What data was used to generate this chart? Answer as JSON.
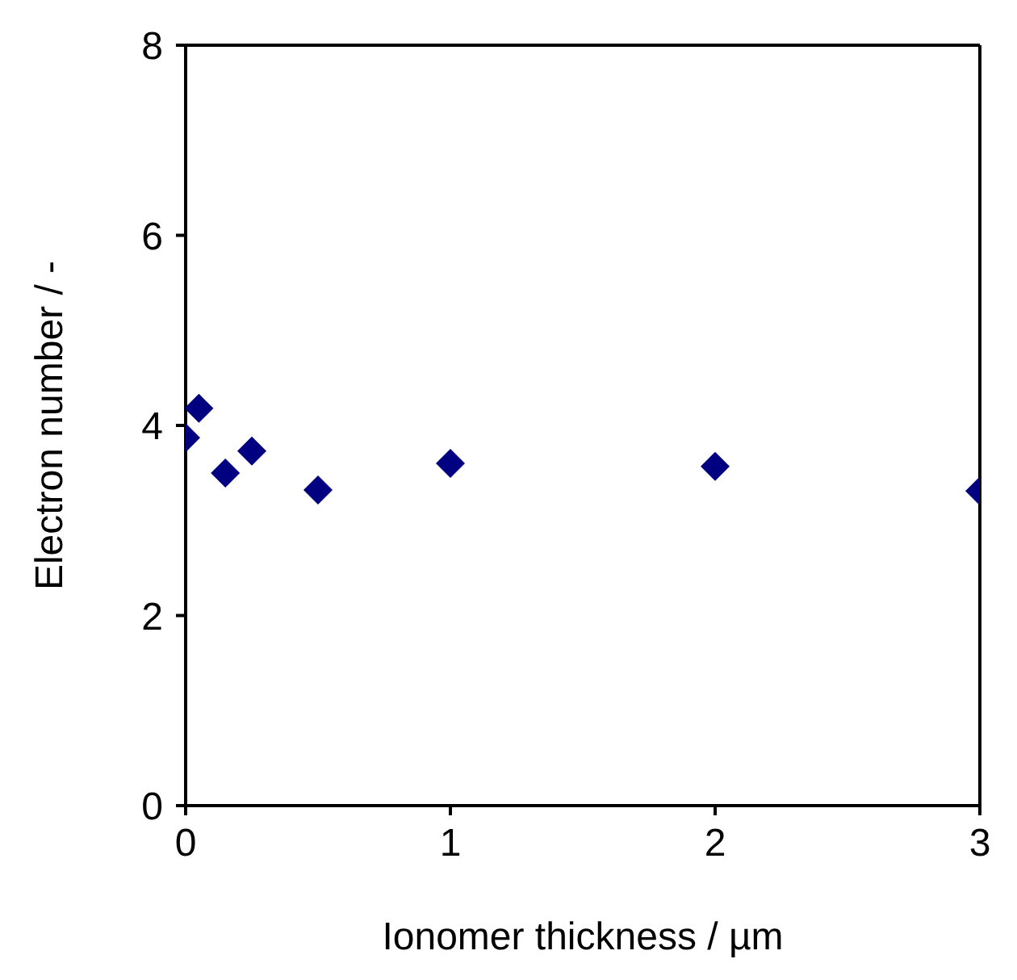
{
  "chart_data": {
    "type": "scatter",
    "xlabel": "Ionomer thickness / µm",
    "ylabel": "Electron number / -",
    "x": [
      0,
      0.05,
      0.15,
      0.25,
      0.5,
      1,
      2,
      3
    ],
    "series": [
      {
        "color": "#000080",
        "values": [
          3.87,
          4.18,
          3.5,
          3.73,
          3.32,
          3.6,
          3.57,
          3.31
        ]
      }
    ],
    "marker": "diamond",
    "xlim": [
      0,
      3
    ],
    "xticks": [
      0,
      1,
      2,
      3
    ],
    "ylim": [
      0,
      8
    ],
    "yticks": [
      0,
      2,
      4,
      6,
      8
    ],
    "grid": false,
    "legend": false
  }
}
